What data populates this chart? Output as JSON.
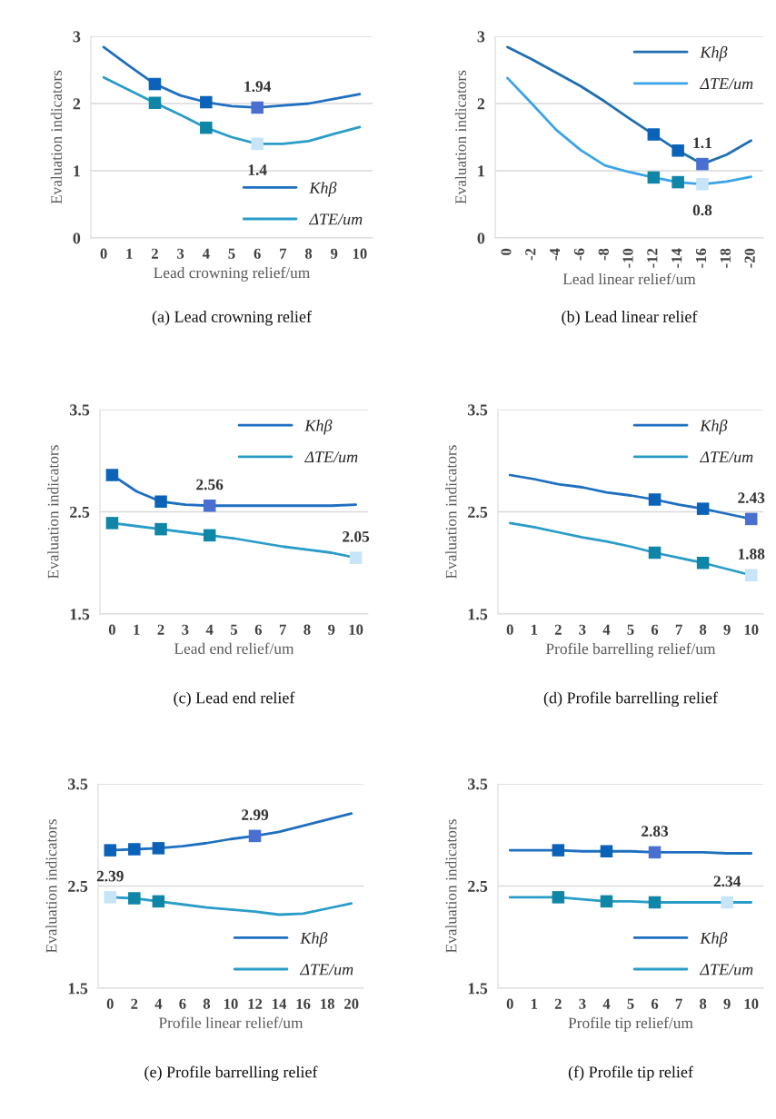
{
  "chart_data": [
    {
      "type": "line",
      "title": "(a) Lead crowning relief",
      "xlabel": "Lead crowning relief/um",
      "ylabel": "Evaluation indicators",
      "categories": [
        "0",
        "1",
        "2",
        "3",
        "4",
        "5",
        "6",
        "7",
        "8",
        "9",
        "10"
      ],
      "ylim": [
        0,
        3
      ],
      "yticks": [
        0,
        1,
        2,
        3
      ],
      "grid": "y",
      "legend": "bottom right",
      "series": [
        {
          "name": "Khβ",
          "color": "#1f6fc0",
          "values": [
            2.84,
            2.56,
            2.29,
            2.12,
            2.02,
            1.96,
            1.94,
            1.97,
            2.0,
            2.07,
            2.14
          ],
          "value_labels": [
            null,
            null,
            null,
            null,
            null,
            null,
            "1.94",
            null,
            null,
            null,
            null
          ]
        },
        {
          "name": "ΔTE/um",
          "color": "#2a9cc8",
          "values": [
            2.39,
            2.2,
            2.01,
            1.83,
            1.64,
            1.5,
            1.4,
            1.4,
            1.44,
            1.55,
            1.65
          ],
          "value_labels": [
            null,
            null,
            null,
            null,
            null,
            null,
            "1.4",
            null,
            null,
            null,
            null
          ]
        },
        {
          "type": "scatter",
          "marker": "square",
          "x": [
            "2",
            "4",
            "6"
          ],
          "values": [
            2.29,
            2.02,
            1.94
          ],
          "colors": [
            "#0a63b8",
            "#0a63b8",
            "#4a6fd0"
          ]
        },
        {
          "type": "scatter",
          "marker": "square",
          "x": [
            "2",
            "4",
            "6"
          ],
          "values": [
            2.01,
            1.64,
            1.4
          ],
          "colors": [
            "#0f86a8",
            "#0f86a8",
            "#c8e4f8"
          ]
        }
      ]
    },
    {
      "type": "line",
      "title": "(b) Lead linear relief",
      "xlabel": "Lead linear relief/um",
      "ylabel": "Evaluation indicators",
      "categories": [
        "0",
        "-2",
        "-4",
        "-6",
        "-8",
        "-10",
        "-12",
        "-14",
        "-16",
        "-18",
        "-20"
      ],
      "ylim": [
        0,
        3
      ],
      "yticks": [
        0,
        1,
        2,
        3
      ],
      "grid": "y",
      "legend": "top right",
      "series": [
        {
          "name": "Khβ",
          "color": "#1f6fb0",
          "values": [
            2.84,
            2.66,
            2.46,
            2.26,
            2.03,
            1.78,
            1.54,
            1.3,
            1.1,
            1.24,
            1.45
          ],
          "value_labels": [
            null,
            null,
            null,
            null,
            null,
            null,
            null,
            null,
            "1.1",
            null,
            null
          ]
        },
        {
          "name": "ΔTE/um",
          "color": "#3ba3e8",
          "values": [
            2.38,
            2.0,
            1.61,
            1.31,
            1.08,
            0.98,
            0.9,
            0.83,
            0.8,
            0.84,
            0.91
          ],
          "value_labels": [
            null,
            null,
            null,
            null,
            null,
            null,
            null,
            null,
            "0.8",
            null,
            null
          ]
        },
        {
          "type": "scatter",
          "marker": "square",
          "x": [
            "-12",
            "-14",
            "-16"
          ],
          "values": [
            1.54,
            1.3,
            1.1
          ],
          "colors": [
            "#0a63b8",
            "#0a63b8",
            "#4a6fd0"
          ]
        },
        {
          "type": "scatter",
          "marker": "square",
          "x": [
            "-12",
            "-14",
            "-16"
          ],
          "values": [
            0.9,
            0.83,
            0.8
          ],
          "colors": [
            "#0f86a8",
            "#0f86a8",
            "#c8e4f8"
          ]
        }
      ]
    },
    {
      "type": "line",
      "title": "(c) Lead end relief",
      "xlabel": "Lead end relief/um",
      "ylabel": "Evaluation indicators",
      "categories": [
        "0",
        "1",
        "2",
        "3",
        "4",
        "5",
        "6",
        "7",
        "8",
        "9",
        "10"
      ],
      "ylim": [
        1.5,
        3.5
      ],
      "yticks": [
        1.5,
        2.5,
        3.5
      ],
      "grid": "y",
      "legend": "top right",
      "series": [
        {
          "name": "Khβ",
          "color": "#1f6fc0",
          "values": [
            2.86,
            2.7,
            2.6,
            2.57,
            2.56,
            2.56,
            2.56,
            2.56,
            2.56,
            2.56,
            2.57
          ],
          "value_labels": [
            null,
            null,
            null,
            null,
            "2.56",
            null,
            null,
            null,
            null,
            null,
            null
          ]
        },
        {
          "name": "ΔTE/um",
          "color": "#2a9cc8",
          "values": [
            2.39,
            2.36,
            2.33,
            2.3,
            2.27,
            2.24,
            2.2,
            2.16,
            2.13,
            2.1,
            2.05
          ],
          "value_labels": [
            null,
            null,
            null,
            null,
            null,
            null,
            null,
            null,
            null,
            null,
            "2.05"
          ]
        },
        {
          "type": "scatter",
          "marker": "square",
          "x": [
            "0",
            "2",
            "4"
          ],
          "values": [
            2.86,
            2.6,
            2.56
          ],
          "colors": [
            "#0a63b8",
            "#0a63b8",
            "#4a6fd0"
          ]
        },
        {
          "type": "scatter",
          "marker": "square",
          "x": [
            "0",
            "2",
            "4",
            "10"
          ],
          "values": [
            2.39,
            2.33,
            2.27,
            2.05
          ],
          "colors": [
            "#0f86a8",
            "#0f86a8",
            "#0f86a8",
            "#c8e4f8"
          ]
        }
      ]
    },
    {
      "type": "line",
      "title": "(d) Profile barrelling relief",
      "xlabel": "Profile barrelling relief/um",
      "ylabel": "Evaluation indicators",
      "categories": [
        "0",
        "1",
        "2",
        "3",
        "4",
        "5",
        "6",
        "7",
        "8",
        "9",
        "10"
      ],
      "ylim": [
        1.5,
        3.5
      ],
      "yticks": [
        1.5,
        2.5,
        3.5
      ],
      "grid": "y",
      "legend": "top right",
      "series": [
        {
          "name": "Khβ",
          "color": "#1f6fc0",
          "values": [
            2.86,
            2.82,
            2.77,
            2.74,
            2.69,
            2.66,
            2.62,
            2.57,
            2.53,
            2.48,
            2.43
          ],
          "value_labels": [
            null,
            null,
            null,
            null,
            null,
            null,
            null,
            null,
            null,
            null,
            "2.43"
          ]
        },
        {
          "name": "ΔTE/um",
          "color": "#2a9cc8",
          "values": [
            2.39,
            2.35,
            2.3,
            2.25,
            2.21,
            2.16,
            2.1,
            2.05,
            2.0,
            1.94,
            1.88
          ],
          "value_labels": [
            null,
            null,
            null,
            null,
            null,
            null,
            null,
            null,
            null,
            null,
            "1.88"
          ]
        },
        {
          "type": "scatter",
          "marker": "square",
          "x": [
            "6",
            "8",
            "10"
          ],
          "values": [
            2.62,
            2.53,
            2.43
          ],
          "colors": [
            "#0a63b8",
            "#0a63b8",
            "#4a6fd0"
          ]
        },
        {
          "type": "scatter",
          "marker": "square",
          "x": [
            "6",
            "8",
            "10"
          ],
          "values": [
            2.1,
            2.0,
            1.88
          ],
          "colors": [
            "#0f86a8",
            "#0f86a8",
            "#c8e4f8"
          ]
        }
      ]
    },
    {
      "type": "line",
      "title": "(e) Profile barrelling relief",
      "xlabel": "Profile linear relief/um",
      "ylabel": "Evaluation indicators",
      "categories": [
        "0",
        "2",
        "4",
        "6",
        "8",
        "10",
        "12",
        "14",
        "16",
        "18",
        "20"
      ],
      "ylim": [
        1.5,
        3.5
      ],
      "yticks": [
        1.5,
        2.5,
        3.5
      ],
      "grid": "y",
      "legend": "bottom right",
      "series": [
        {
          "name": "Khβ",
          "color": "#1f6fc0",
          "values": [
            2.85,
            2.86,
            2.87,
            2.89,
            2.92,
            2.96,
            2.99,
            3.03,
            3.09,
            3.15,
            3.21
          ],
          "value_labels": [
            null,
            null,
            null,
            null,
            null,
            null,
            "2.99",
            null,
            null,
            null,
            null
          ]
        },
        {
          "name": "ΔTE/um",
          "color": "#2a9cc8",
          "values": [
            2.39,
            2.38,
            2.35,
            2.32,
            2.29,
            2.27,
            2.25,
            2.22,
            2.23,
            2.28,
            2.33
          ],
          "value_labels": [
            "2.39",
            null,
            null,
            null,
            null,
            null,
            null,
            null,
            null,
            null,
            null
          ]
        },
        {
          "type": "scatter",
          "marker": "square",
          "x": [
            "0",
            "2",
            "4",
            "12"
          ],
          "values": [
            2.85,
            2.86,
            2.87,
            2.99
          ],
          "colors": [
            "#0a63b8",
            "#0a63b8",
            "#0a63b8",
            "#4a6fd0"
          ]
        },
        {
          "type": "scatter",
          "marker": "square",
          "x": [
            "0",
            "2",
            "4"
          ],
          "values": [
            2.39,
            2.38,
            2.35
          ],
          "colors": [
            "#c8e4f8",
            "#0f86a8",
            "#0f86a8"
          ]
        }
      ]
    },
    {
      "type": "line",
      "title": "(f) Profile tip relief",
      "xlabel": "Profile tip relief/um",
      "ylabel": "Evaluation indicators",
      "categories": [
        "0",
        "1",
        "2",
        "3",
        "4",
        "5",
        "6",
        "7",
        "8",
        "9",
        "10"
      ],
      "ylim": [
        1.5,
        3.5
      ],
      "yticks": [
        1.5,
        2.5,
        3.5
      ],
      "grid": "y",
      "legend": "bottom right",
      "series": [
        {
          "name": "Khβ",
          "color": "#1f6fc0",
          "values": [
            2.85,
            2.85,
            2.85,
            2.84,
            2.84,
            2.84,
            2.83,
            2.83,
            2.83,
            2.82,
            2.82
          ],
          "value_labels": [
            null,
            null,
            null,
            null,
            null,
            null,
            "2.83",
            null,
            null,
            null,
            null
          ]
        },
        {
          "name": "ΔTE/um",
          "color": "#2a9cc8",
          "values": [
            2.39,
            2.39,
            2.39,
            2.37,
            2.35,
            2.35,
            2.34,
            2.34,
            2.34,
            2.34,
            2.34
          ],
          "value_labels": [
            null,
            null,
            null,
            null,
            null,
            null,
            null,
            null,
            null,
            "2.34",
            null
          ]
        },
        {
          "type": "scatter",
          "marker": "square",
          "x": [
            "2",
            "4",
            "6"
          ],
          "values": [
            2.85,
            2.84,
            2.83
          ],
          "colors": [
            "#0a63b8",
            "#0a63b8",
            "#4a6fd0"
          ]
        },
        {
          "type": "scatter",
          "marker": "square",
          "x": [
            "2",
            "4",
            "6",
            "9"
          ],
          "values": [
            2.39,
            2.35,
            2.34,
            2.34
          ],
          "colors": [
            "#0f86a8",
            "#0f86a8",
            "#0f86a8",
            "#c8e4f8"
          ]
        }
      ]
    }
  ]
}
